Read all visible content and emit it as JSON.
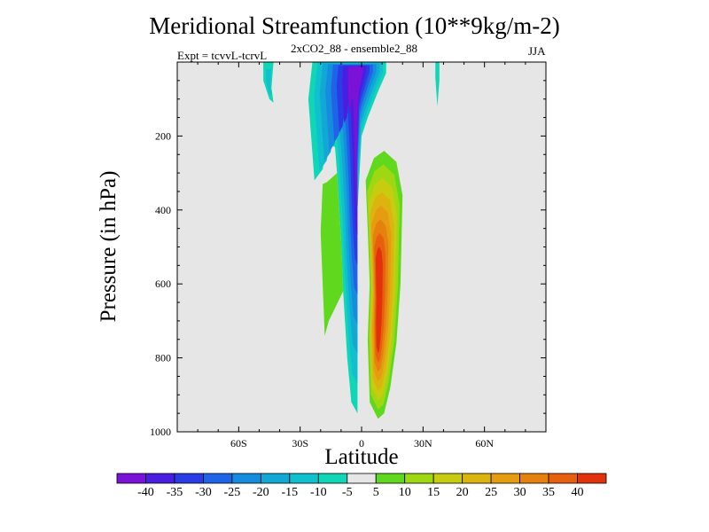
{
  "title": "Meridional Streamfunction (10**9kg/m-2)",
  "subtitle_left": "Expt = tcvvL-tcrvL",
  "subtitle_center": "2xCO2_88 - ensemble2_88",
  "subtitle_right": "JJA",
  "colors": {
    "background": "#e6e6e6",
    "palette": [
      "#7a12d8",
      "#4a1ee0",
      "#2a3ce6",
      "#1f64e6",
      "#168cde",
      "#12a8d6",
      "#10c0cf",
      "#10d6b8",
      "#e6e6e6",
      "#5fd81e",
      "#9fd812",
      "#c8cc10",
      "#dcb410",
      "#e69c10",
      "#e6800f",
      "#e6600e",
      "#e2320c"
    ]
  },
  "colorbar": {
    "labels": [
      "-40",
      "-35",
      "-30",
      "-25",
      "-20",
      "-15",
      "-10",
      "-5",
      "5",
      "10",
      "15",
      "20",
      "25",
      "30",
      "35",
      "40"
    ]
  },
  "chart_data": {
    "type": "heatmap",
    "title": "Meridional Streamfunction (10**9kg/m-2)",
    "xlabel": "Latitude",
    "ylabel": "Pressure (in hPa)",
    "x_ticks": [
      "60S",
      "30S",
      "0",
      "30N",
      "60N"
    ],
    "x_tick_values": [
      -60,
      -30,
      0,
      30,
      60
    ],
    "y_ticks": [
      "200",
      "400",
      "600",
      "800",
      "1000"
    ],
    "y_tick_values": [
      200,
      400,
      600,
      800,
      1000
    ],
    "xlim": [
      -90,
      90
    ],
    "ylim": [
      0,
      1000
    ],
    "y_inverted": true,
    "contour_levels": [
      -40,
      -35,
      -30,
      -25,
      -20,
      -15,
      -10,
      -5,
      5,
      10,
      15,
      20,
      25,
      30,
      35,
      40
    ],
    "features": [
      {
        "name": "negative column (upper troposphere, near equator)",
        "polygon": [
          [
            -24,
            0
          ],
          [
            -26,
            100
          ],
          [
            -23,
            320
          ],
          [
            -19,
            290
          ],
          [
            -17,
            220
          ],
          [
            -13,
            230
          ],
          [
            -12,
            300
          ],
          [
            -10,
            480
          ],
          [
            -9,
            620
          ],
          [
            -7,
            800
          ],
          [
            -5,
            920
          ],
          [
            -2,
            950
          ],
          [
            -2,
            820
          ],
          [
            -3,
            600
          ],
          [
            -2,
            400
          ],
          [
            0,
            200
          ],
          [
            3,
            150
          ],
          [
            8,
            80
          ],
          [
            12,
            30
          ],
          [
            12,
            0
          ]
        ],
        "min_value": -40
      },
      {
        "name": "negative plume",
        "polygon": [
          [
            -48,
            0
          ],
          [
            -48,
            50
          ],
          [
            -45,
            100
          ],
          [
            -43,
            110
          ],
          [
            -44,
            70
          ],
          [
            -43,
            0
          ]
        ],
        "min_value": -10
      },
      {
        "name": "negative plume",
        "polygon": [
          [
            36,
            0
          ],
          [
            36,
            40
          ],
          [
            37,
            120
          ],
          [
            38,
            50
          ],
          [
            38,
            0
          ]
        ],
        "min_value": -5
      },
      {
        "name": "positive cell (northern hemisphere)",
        "polygon": [
          [
            2,
            320
          ],
          [
            6,
            260
          ],
          [
            11,
            240
          ],
          [
            17,
            270
          ],
          [
            20,
            360
          ],
          [
            19,
            600
          ],
          [
            17,
            760
          ],
          [
            14,
            880
          ],
          [
            11,
            950
          ],
          [
            8,
            965
          ],
          [
            4,
            920
          ],
          [
            3,
            750
          ],
          [
            4,
            600
          ],
          [
            3,
            450
          ]
        ],
        "max_value": 40
      },
      {
        "name": "positive region (southern hemisphere)",
        "polygon": [
          [
            -19,
            600
          ],
          [
            -20,
            460
          ],
          [
            -19,
            330
          ],
          [
            -17,
            325
          ],
          [
            -12,
            300
          ],
          [
            -10,
            480
          ],
          [
            -9,
            620
          ],
          [
            -16,
            700
          ],
          [
            -18,
            740
          ]
        ],
        "max_value": 5
      }
    ]
  }
}
